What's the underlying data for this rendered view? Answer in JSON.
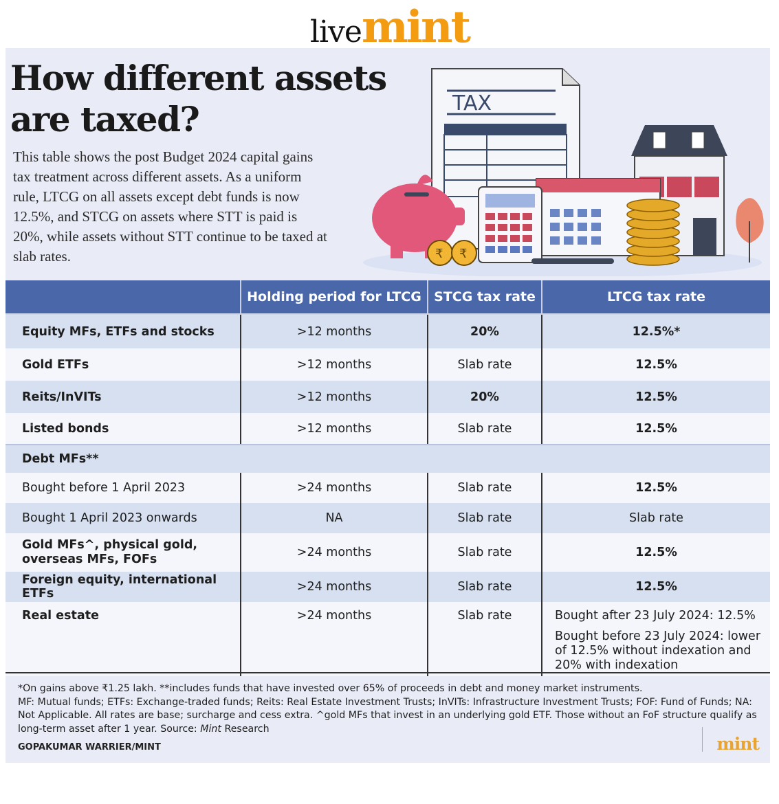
{
  "logo": {
    "live": "live",
    "mint": "mint"
  },
  "headline": "How different assets are taxed?",
  "intro": "This table shows the post Budget 2024 capital gains tax treatment across different assets. As a uniform rule, LTCG on all assets except debt funds is now 12.5%, and STCG on assets where STT is paid is 20%, while assets without STT continue to be taxed at slab rates.",
  "illustration": {
    "tax_label": "TAX"
  },
  "table": {
    "headers": [
      "",
      "Holding period for LTCG",
      "STCG tax rate",
      "LTCG tax rate"
    ],
    "rows": [
      {
        "asset": "Equity MFs, ETFs and stocks",
        "holding": ">12 months",
        "stcg": "20%",
        "ltcg": "12.5%*"
      },
      {
        "asset": "Gold ETFs",
        "holding": ">12 months",
        "stcg": "Slab rate",
        "ltcg": "12.5%"
      },
      {
        "asset": "Reits/InVITs",
        "holding": ">12 months",
        "stcg": "20%",
        "ltcg": "12.5%"
      },
      {
        "asset": "Listed bonds",
        "holding": ">12 months",
        "stcg": "Slab rate",
        "ltcg": "12.5%"
      }
    ],
    "section": "Debt MFs**",
    "debt_rows": [
      {
        "asset": "Bought before 1 April 2023",
        "holding": ">24 months",
        "stcg": "Slab rate",
        "ltcg": "12.5%"
      },
      {
        "asset": "Bought 1 April 2023 onwards",
        "holding": "NA",
        "stcg": "Slab rate",
        "ltcg": "Slab rate"
      }
    ],
    "other_rows": [
      {
        "asset": "Gold MFs^, physical gold, overseas MFs, FOFs",
        "holding": ">24 months",
        "stcg": "Slab rate",
        "ltcg": "12.5%"
      },
      {
        "asset": "Foreign equity, international ETFs",
        "holding": ">24 months",
        "stcg": "Slab rate",
        "ltcg": "12.5%"
      }
    ],
    "real_estate": {
      "asset": "Real estate",
      "holding": ">24 months",
      "stcg": "Slab rate",
      "ltcg_line1": "Bought after 23 July 2024: 12.5%",
      "ltcg_line2": "Bought before 23 July 2024: lower of 12.5% without indexation and 20% with indexation"
    }
  },
  "footnote": {
    "line1": "*On gains above ₹1.25 lakh. **includes funds that have invested over 65% of proceeds in debt and money market instruments.",
    "line2a": "MF: Mutual funds; ETFs: Exchange-traded funds; Reits: Real Estate Investment Trusts; InVITs: Infrastructure Investment Trusts; FOF: Fund of Funds; NA: Not Applicable. All rates are base; surcharge and cess extra. ^gold MFs that invest in an underlying gold ETF. Those without an FoF structure qualify as long-term asset after 1 year. Source: ",
    "source": "Mint",
    "line2b": " Research"
  },
  "credit": "GOPAKUMAR WARRIER/MINT",
  "footer_logo": "mint",
  "colors": {
    "header_bg": "#4a68a9",
    "panel_bg": "#e9ecf7",
    "row_shade": "#d6e0f1",
    "brand_orange": "#f39c12"
  }
}
